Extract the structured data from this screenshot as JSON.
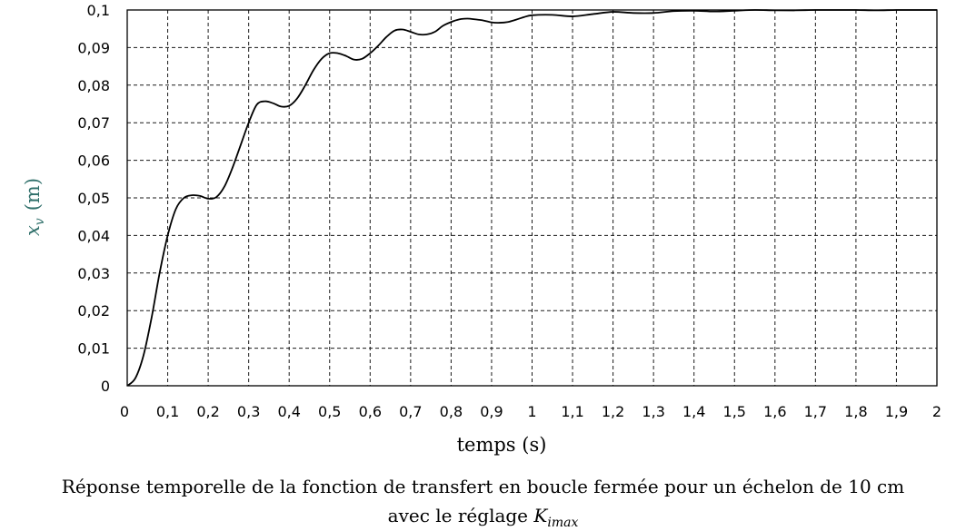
{
  "chart_data": {
    "type": "line",
    "xlabel": "temps (s)",
    "ylabel_symbol": "x",
    "ylabel_subscript": "v",
    "ylabel_unit": "(m)",
    "xlim": [
      0,
      2
    ],
    "ylim": [
      0,
      0.1
    ],
    "grid": true,
    "x_ticks": [
      "0",
      "0,1",
      "0,2",
      "0,3",
      "0,4",
      "0,5",
      "0,6",
      "0,7",
      "0,8",
      "0,9",
      "1",
      "1,1",
      "1,2",
      "1,3",
      "1,4",
      "1,5",
      "1,6",
      "1,7",
      "1,8",
      "1,9",
      "2"
    ],
    "y_ticks": [
      "0",
      "0,01",
      "0,02",
      "0,03",
      "0,04",
      "0,05",
      "0,06",
      "0,07",
      "0,08",
      "0,09",
      "0,1"
    ],
    "series": [
      {
        "x": [
          0,
          0.02,
          0.04,
          0.06,
          0.08,
          0.1,
          0.12,
          0.14,
          0.16,
          0.18,
          0.2,
          0.22,
          0.24,
          0.26,
          0.28,
          0.3,
          0.32,
          0.34,
          0.36,
          0.38,
          0.4,
          0.42,
          0.44,
          0.46,
          0.48,
          0.5,
          0.52,
          0.54,
          0.56,
          0.58,
          0.6,
          0.62,
          0.64,
          0.66,
          0.68,
          0.7,
          0.72,
          0.74,
          0.76,
          0.78,
          0.8,
          0.82,
          0.84,
          0.86,
          0.88,
          0.9,
          0.92,
          0.94,
          0.96,
          0.98,
          1.0,
          1.05,
          1.1,
          1.15,
          1.2,
          1.25,
          1.3,
          1.35,
          1.4,
          1.45,
          1.5,
          1.55,
          1.6,
          1.65,
          1.7,
          1.75,
          1.8,
          1.85,
          1.9,
          1.95,
          2.0
        ],
        "y": [
          0,
          0.002,
          0.008,
          0.018,
          0.03,
          0.04,
          0.047,
          0.05,
          0.0507,
          0.0505,
          0.0498,
          0.0502,
          0.053,
          0.058,
          0.064,
          0.07,
          0.0748,
          0.0757,
          0.0752,
          0.0743,
          0.0745,
          0.0765,
          0.08,
          0.084,
          0.087,
          0.0885,
          0.0885,
          0.0878,
          0.0868,
          0.087,
          0.0885,
          0.0905,
          0.0928,
          0.0945,
          0.0948,
          0.0942,
          0.0935,
          0.0935,
          0.0942,
          0.0958,
          0.0968,
          0.0975,
          0.0977,
          0.0975,
          0.0972,
          0.0967,
          0.0966,
          0.0968,
          0.0974,
          0.0981,
          0.0986,
          0.0987,
          0.0983,
          0.0989,
          0.0995,
          0.0992,
          0.0992,
          0.0997,
          0.0998,
          0.0996,
          0.0998,
          0.1,
          0.0999,
          0.0999,
          0.1,
          0.1,
          0.1,
          0.0999,
          0.1,
          0.1,
          0.1
        ]
      }
    ]
  },
  "caption": {
    "line1": "Réponse temporelle de la fonction de transfert en boucle fermée pour un échelon de 10 cm",
    "line2_prefix": "avec le réglage",
    "line2_symbol": "K",
    "line2_subscript": "imax"
  },
  "colors": {
    "curve": "#000000",
    "grid": "#1a1a1a",
    "ylabel": "#2f6f6a"
  }
}
